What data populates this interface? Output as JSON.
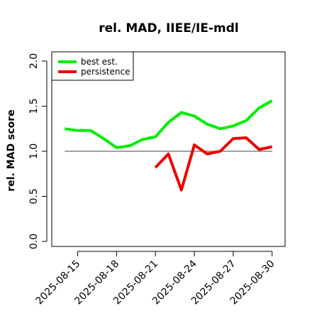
{
  "chart_data": {
    "type": "line",
    "title": "rel. MAD, IIEE/IE-mdl",
    "xlabel": "",
    "ylabel": "rel. MAD score",
    "ylim": [
      0.0,
      2.0
    ],
    "y_ticks": [
      "0.0",
      "0.5",
      "1.0",
      "1.5",
      "2.0"
    ],
    "x_range": [
      "2025-08-13",
      "2025-08-31"
    ],
    "x_ticks": [
      "2025-08-15",
      "2025-08-18",
      "2025-08-21",
      "2025-08-24",
      "2025-08-27",
      "2025-08-30"
    ],
    "legend": {
      "position": "top-left",
      "entries": [
        "best est.",
        "persistence"
      ]
    },
    "reference_line": {
      "y": 1.0,
      "from": "2025-08-14",
      "to": "2025-08-30",
      "color": "#808080"
    },
    "series": [
      {
        "name": "best est.",
        "color": "#00ee00",
        "points": [
          [
            "2025-08-14",
            1.25
          ],
          [
            "2025-08-15",
            1.23
          ],
          [
            "2025-08-16",
            1.23
          ],
          [
            "2025-08-17",
            1.14
          ],
          [
            "2025-08-18",
            1.04
          ],
          [
            "2025-08-19",
            1.06
          ],
          [
            "2025-08-20",
            1.13
          ],
          [
            "2025-08-21",
            1.16
          ],
          [
            "2025-08-22",
            1.32
          ],
          [
            "2025-08-23",
            1.43
          ],
          [
            "2025-08-24",
            1.39
          ],
          [
            "2025-08-25",
            1.3
          ],
          [
            "2025-08-26",
            1.25
          ],
          [
            "2025-08-27",
            1.28
          ],
          [
            "2025-08-28",
            1.34
          ],
          [
            "2025-08-29",
            1.48
          ],
          [
            "2025-08-30",
            1.56
          ]
        ]
      },
      {
        "name": "persistence",
        "color": "#ee0000",
        "points": [
          [
            "2025-08-21",
            0.82
          ],
          [
            "2025-08-22",
            0.97
          ],
          [
            "2025-08-23",
            0.57
          ],
          [
            "2025-08-24",
            1.07
          ],
          [
            "2025-08-25",
            0.97
          ],
          [
            "2025-08-26",
            1.0
          ],
          [
            "2025-08-27",
            1.14
          ],
          [
            "2025-08-28",
            1.15
          ],
          [
            "2025-08-29",
            1.02
          ],
          [
            "2025-08-30",
            1.05
          ]
        ]
      }
    ]
  }
}
